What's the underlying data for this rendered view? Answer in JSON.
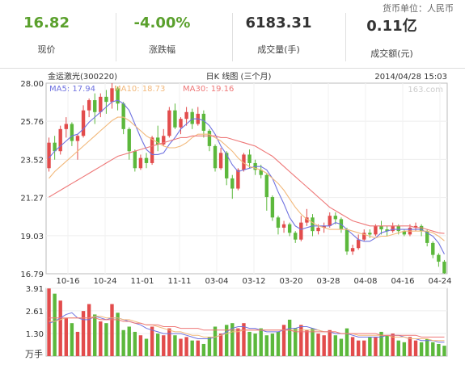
{
  "header": {
    "currency_note": "货币单位：人民币",
    "stats": [
      {
        "value": "16.82",
        "label": "现价",
        "color": "#5aa02c"
      },
      {
        "value": "-4.00%",
        "label": "涨跌幅",
        "color": "#5aa02c"
      },
      {
        "value": "6183.31",
        "label": "成交量(手)",
        "color": "#333333"
      },
      {
        "value": "0.11亿",
        "label": "成交额(元)",
        "color": "#333333"
      }
    ]
  },
  "chart_data": [
    {
      "type": "candlestick",
      "title": "日K 线图 (三个月)",
      "stock_name": "金运激光(300220)",
      "timestamp": "2014/04/28 15:03",
      "watermark": "163.com",
      "y_ticks": [
        "28.00",
        "25.76",
        "23.52",
        "21.27",
        "19.03",
        "16.79"
      ],
      "ylim": [
        16.79,
        28.0
      ],
      "x_ticks": [
        "10-16",
        "10-24",
        "11-01",
        "11-11",
        "03-04",
        "03-12",
        "03-20",
        "03-28",
        "04-08",
        "04-16",
        "04-24"
      ],
      "legend": [
        {
          "name": "MA5",
          "value": "17.94",
          "color": "#6f72e0"
        },
        {
          "name": "MA10",
          "value": "18.73",
          "color": "#f2b87a"
        },
        {
          "name": "MA30",
          "value": "19.16",
          "color": "#ee7777"
        }
      ],
      "up_color": "#e24c4c",
      "down_color": "#5cb83c",
      "candles": [
        [
          23.0,
          24.5,
          22.8,
          24.8
        ],
        [
          24.5,
          24.0,
          23.5,
          24.9
        ],
        [
          24.0,
          25.3,
          23.8,
          25.5
        ],
        [
          25.3,
          25.6,
          24.8,
          26.0
        ],
        [
          25.6,
          24.6,
          24.3,
          25.7
        ],
        [
          24.6,
          24.9,
          23.5,
          25.0
        ],
        [
          24.9,
          26.4,
          24.8,
          26.7
        ],
        [
          26.4,
          27.0,
          26.0,
          27.1
        ],
        [
          27.0,
          26.3,
          25.6,
          27.4
        ],
        [
          26.3,
          27.2,
          26.0,
          27.4
        ],
        [
          27.2,
          26.9,
          26.2,
          27.6
        ],
        [
          26.9,
          27.7,
          26.5,
          28.0
        ],
        [
          27.7,
          26.8,
          26.4,
          27.8
        ],
        [
          26.8,
          25.3,
          25.0,
          26.9
        ],
        [
          25.3,
          24.0,
          23.5,
          25.4
        ],
        [
          24.0,
          23.0,
          22.8,
          24.1
        ],
        [
          23.0,
          23.6,
          22.9,
          23.8
        ],
        [
          23.6,
          23.3,
          23.0,
          23.9
        ],
        [
          23.3,
          24.8,
          23.2,
          24.9
        ],
        [
          24.8,
          24.4,
          24.0,
          25.5
        ],
        [
          24.4,
          24.9,
          24.3,
          25.3
        ],
        [
          24.9,
          26.4,
          24.8,
          26.6
        ],
        [
          26.4,
          25.4,
          25.3,
          26.8
        ],
        [
          25.4,
          25.9,
          25.0,
          26.0
        ],
        [
          25.9,
          26.3,
          25.5,
          26.6
        ],
        [
          26.3,
          25.6,
          25.3,
          26.5
        ],
        [
          25.6,
          26.2,
          25.5,
          26.6
        ],
        [
          26.2,
          25.2,
          24.8,
          26.4
        ],
        [
          25.2,
          24.3,
          24.0,
          25.3
        ],
        [
          24.3,
          23.0,
          22.8,
          24.4
        ],
        [
          23.0,
          23.9,
          22.9,
          24.2
        ],
        [
          23.9,
          22.4,
          22.0,
          24.0
        ],
        [
          22.4,
          21.8,
          21.2,
          22.6
        ],
        [
          21.8,
          22.9,
          21.7,
          23.0
        ],
        [
          22.9,
          23.8,
          22.8,
          23.9
        ],
        [
          23.8,
          23.3,
          23.0,
          24.1
        ],
        [
          23.3,
          22.9,
          22.6,
          23.5
        ],
        [
          22.9,
          22.6,
          22.4,
          23.2
        ],
        [
          22.6,
          21.3,
          20.5,
          22.7
        ],
        [
          21.3,
          20.1,
          19.9,
          21.4
        ],
        [
          20.1,
          19.5,
          19.1,
          20.2
        ],
        [
          19.5,
          19.7,
          19.2,
          19.9
        ],
        [
          19.7,
          19.2,
          19.0,
          19.8
        ],
        [
          19.2,
          18.8,
          18.6,
          19.3
        ],
        [
          18.8,
          19.8,
          18.7,
          20.2
        ],
        [
          19.8,
          20.1,
          19.6,
          20.6
        ],
        [
          20.1,
          19.3,
          19.0,
          20.3
        ],
        [
          19.3,
          19.5,
          19.1,
          19.7
        ],
        [
          19.5,
          19.6,
          19.2,
          19.8
        ],
        [
          19.6,
          20.2,
          19.5,
          20.4
        ],
        [
          20.2,
          20.0,
          19.7,
          20.4
        ],
        [
          20.0,
          19.4,
          19.2,
          20.1
        ],
        [
          19.4,
          18.1,
          17.9,
          19.5
        ],
        [
          18.1,
          18.3,
          17.9,
          18.5
        ],
        [
          18.3,
          18.8,
          18.2,
          19.1
        ],
        [
          18.8,
          19.2,
          18.7,
          19.4
        ],
        [
          19.2,
          19.1,
          18.9,
          19.4
        ],
        [
          19.1,
          19.6,
          19.0,
          19.7
        ],
        [
          19.6,
          19.4,
          19.1,
          19.9
        ],
        [
          19.4,
          19.3,
          19.0,
          19.6
        ],
        [
          19.3,
          19.6,
          19.2,
          19.8
        ],
        [
          19.6,
          19.3,
          19.1,
          19.7
        ],
        [
          19.3,
          19.1,
          19.0,
          19.4
        ],
        [
          19.1,
          19.5,
          19.0,
          19.7
        ],
        [
          19.5,
          19.6,
          19.3,
          19.8
        ],
        [
          19.6,
          19.3,
          19.0,
          19.7
        ],
        [
          19.3,
          18.6,
          18.4,
          19.4
        ],
        [
          18.6,
          17.9,
          17.7,
          18.7
        ],
        [
          17.9,
          17.5,
          17.2,
          18.0
        ],
        [
          17.5,
          16.82,
          16.79,
          17.6
        ]
      ],
      "ma5": [
        23.6,
        24.0,
        24.3,
        24.6,
        24.9,
        25.0,
        25.3,
        25.7,
        26.0,
        26.3,
        26.6,
        26.9,
        27.0,
        26.8,
        26.4,
        25.6,
        24.8,
        24.1,
        23.8,
        23.8,
        23.9,
        24.4,
        24.8,
        25.3,
        25.6,
        25.9,
        25.9,
        25.8,
        25.5,
        25.0,
        24.3,
        23.8,
        23.2,
        22.8,
        22.9,
        23.0,
        23.1,
        23.1,
        22.9,
        22.4,
        21.6,
        20.9,
        20.1,
        19.6,
        19.4,
        19.5,
        19.6,
        19.6,
        19.6,
        19.6,
        19.8,
        19.7,
        19.4,
        19.1,
        18.8,
        18.7,
        18.7,
        18.9,
        19.2,
        19.3,
        19.4,
        19.4,
        19.4,
        19.4,
        19.4,
        19.4,
        19.2,
        19.0,
        18.6,
        17.94
      ],
      "ma10": [
        22.4,
        22.8,
        23.1,
        23.4,
        23.7,
        24.0,
        24.3,
        24.6,
        24.9,
        25.2,
        25.5,
        25.8,
        26.0,
        26.0,
        25.8,
        25.5,
        25.2,
        24.9,
        24.7,
        24.5,
        24.3,
        24.2,
        24.2,
        24.3,
        24.5,
        24.8,
        25.0,
        25.0,
        25.0,
        24.8,
        24.6,
        24.3,
        24.0,
        23.6,
        23.3,
        23.1,
        23.0,
        22.9,
        22.7,
        22.4,
        22.1,
        21.7,
        21.2,
        20.7,
        20.3,
        20.0,
        19.8,
        19.6,
        19.5,
        19.4,
        19.4,
        19.4,
        19.4,
        19.3,
        19.2,
        19.1,
        19.0,
        18.9,
        19.0,
        19.0,
        19.1,
        19.2,
        19.3,
        19.3,
        19.3,
        19.3,
        19.3,
        19.2,
        19.0,
        18.73
      ],
      "ma30": [
        21.3,
        21.5,
        21.7,
        21.9,
        22.1,
        22.3,
        22.5,
        22.7,
        22.9,
        23.1,
        23.3,
        23.5,
        23.7,
        23.8,
        23.9,
        24.0,
        24.1,
        24.2,
        24.3,
        24.4,
        24.5,
        24.6,
        24.7,
        24.8,
        24.8,
        24.9,
        24.9,
        24.9,
        24.9,
        24.9,
        24.8,
        24.8,
        24.7,
        24.6,
        24.5,
        24.4,
        24.3,
        24.1,
        23.9,
        23.7,
        23.4,
        23.1,
        22.8,
        22.5,
        22.2,
        21.9,
        21.6,
        21.3,
        21.0,
        20.7,
        20.5,
        20.3,
        20.1,
        19.9,
        19.8,
        19.7,
        19.6,
        19.6,
        19.6,
        19.6,
        19.6,
        19.6,
        19.6,
        19.6,
        19.5,
        19.5,
        19.4,
        19.3,
        19.2,
        19.16
      ]
    },
    {
      "type": "bar",
      "unit_label": "万手",
      "y_ticks": [
        "3.91",
        "2.61",
        "1.30"
      ],
      "ylim": [
        0,
        3.91
      ],
      "volume": [
        3.9,
        3.6,
        3.2,
        2.2,
        1.9,
        1.4,
        2.6,
        3.0,
        2.4,
        2.0,
        1.9,
        3.0,
        2.5,
        1.5,
        1.7,
        1.4,
        1.2,
        1.0,
        1.7,
        1.3,
        1.2,
        1.6,
        1.2,
        1.0,
        1.1,
        0.9,
        0.9,
        0.7,
        1.1,
        1.7,
        1.3,
        1.8,
        1.9,
        1.6,
        1.9,
        1.4,
        1.3,
        1.6,
        1.2,
        1.3,
        1.4,
        1.8,
        2.1,
        1.6,
        1.8,
        1.5,
        1.6,
        1.3,
        1.2,
        1.5,
        1.2,
        1.0,
        1.6,
        1.1,
        0.9,
        0.9,
        1.1,
        1.1,
        1.4,
        1.2,
        1.3,
        0.9,
        0.8,
        1.1,
        0.9,
        0.8,
        1.0,
        0.8,
        0.7,
        0.6
      ],
      "vol_ma5": [
        1.9,
        2.0,
        2.2,
        2.4,
        2.5,
        2.2,
        2.1,
        2.1,
        2.3,
        2.2,
        2.1,
        2.2,
        2.2,
        2.1,
        2.0,
        1.9,
        1.8,
        1.6,
        1.5,
        1.4,
        1.3,
        1.3,
        1.3,
        1.3,
        1.2,
        1.1,
        1.0,
        1.0,
        1.0,
        1.1,
        1.2,
        1.4,
        1.6,
        1.7,
        1.7,
        1.6,
        1.6,
        1.5,
        1.4,
        1.4,
        1.4,
        1.5,
        1.6,
        1.6,
        1.7,
        1.7,
        1.6,
        1.5,
        1.4,
        1.4,
        1.3,
        1.3,
        1.3,
        1.2,
        1.1,
        1.1,
        1.1,
        1.1,
        1.1,
        1.2,
        1.2,
        1.2,
        1.1,
        1.0,
        1.0,
        0.9,
        0.9,
        0.9,
        0.8,
        0.8
      ],
      "vol_ma10": [
        2.0,
        2.0,
        2.1,
        2.2,
        2.2,
        2.2,
        2.2,
        2.2,
        2.3,
        2.3,
        2.2,
        2.2,
        2.2,
        2.1,
        2.1,
        2.0,
        1.9,
        1.8,
        1.8,
        1.7,
        1.6,
        1.5,
        1.4,
        1.4,
        1.3,
        1.2,
        1.2,
        1.1,
        1.1,
        1.1,
        1.2,
        1.3,
        1.4,
        1.4,
        1.5,
        1.5,
        1.5,
        1.5,
        1.5,
        1.5,
        1.5,
        1.5,
        1.5,
        1.5,
        1.5,
        1.5,
        1.5,
        1.5,
        1.4,
        1.4,
        1.4,
        1.3,
        1.3,
        1.3,
        1.2,
        1.2,
        1.2,
        1.2,
        1.2,
        1.2,
        1.1,
        1.1,
        1.1,
        1.0,
        1.0,
        1.0,
        1.0,
        0.9,
        0.9,
        0.9
      ],
      "vol_ma30": [
        2.2,
        2.2,
        2.2,
        2.2,
        2.2,
        2.2,
        2.2,
        2.2,
        2.2,
        2.1,
        2.1,
        2.1,
        2.1,
        2.0,
        2.0,
        1.9,
        1.9,
        1.8,
        1.8,
        1.8,
        1.7,
        1.7,
        1.7,
        1.6,
        1.6,
        1.6,
        1.6,
        1.5,
        1.5,
        1.5,
        1.5,
        1.5,
        1.5,
        1.5,
        1.5,
        1.5,
        1.5,
        1.5,
        1.5,
        1.5,
        1.5,
        1.5,
        1.5,
        1.4,
        1.4,
        1.4,
        1.4,
        1.4,
        1.4,
        1.4,
        1.4,
        1.3,
        1.3,
        1.3,
        1.3,
        1.3,
        1.3,
        1.3,
        1.2,
        1.2,
        1.2,
        1.2,
        1.2,
        1.2,
        1.2,
        1.1,
        1.1,
        1.1,
        1.1,
        1.1
      ]
    }
  ]
}
